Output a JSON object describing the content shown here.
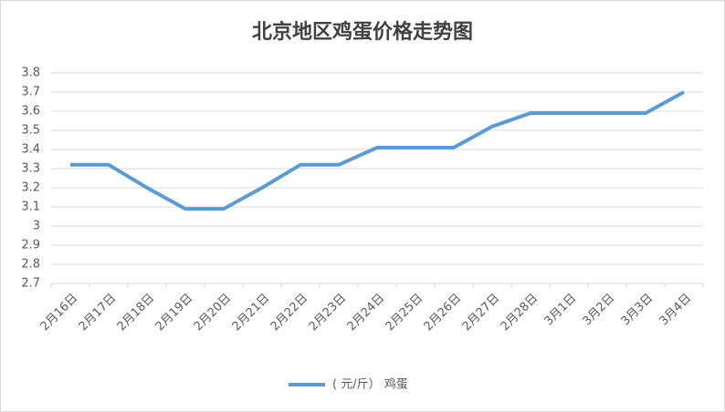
{
  "chart_data": {
    "type": "line",
    "title": "北京地区鸡蛋价格走势图",
    "categories": [
      "2月16日",
      "2月17日",
      "2月18日",
      "2月19日",
      "2月20日",
      "2月21日",
      "2月22日",
      "2月23日",
      "2月24日",
      "2月25日",
      "2月26日",
      "2月27日",
      "2月28日",
      "3月1日",
      "3月2日",
      "3月3日",
      "3月4日"
    ],
    "series": [
      {
        "name": "( 元/斤） 鸡蛋",
        "color": "#5b9bd5",
        "values": [
          3.32,
          3.32,
          3.2,
          3.09,
          3.09,
          3.2,
          3.32,
          3.32,
          3.41,
          3.41,
          3.41,
          3.52,
          3.59,
          3.59,
          3.59,
          3.59,
          3.7
        ]
      }
    ],
    "ylim": [
      2.7,
      3.8
    ],
    "yticks": [
      2.7,
      2.8,
      2.9,
      3,
      3.1,
      3.2,
      3.3,
      3.4,
      3.5,
      3.6,
      3.7,
      3.8
    ],
    "grid": true,
    "legend": "bottom"
  }
}
